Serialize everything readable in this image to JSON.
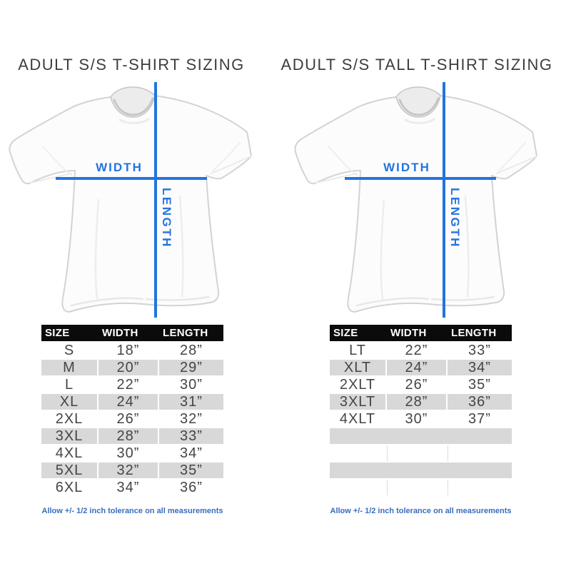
{
  "colors": {
    "accent_blue": "#2374DF",
    "footnote_blue": "#3A6DBF",
    "table_header_bg": "#0B0B0B",
    "table_header_text": "#FFFFFF",
    "row_gray": "#D8D8D8",
    "row_white": "#FFFFFF",
    "data_text": "#454545",
    "title_text": "#3D3D3D",
    "shirt_outline": "#D3D3D3"
  },
  "panels": [
    {
      "title": "ADULT S/S T-SHIRT SIZING",
      "diagram": {
        "width_label": "WIDTH",
        "length_label": "LENGTH"
      },
      "table": {
        "headers": [
          "SIZE",
          "WIDTH",
          "LENGTH"
        ],
        "rows": [
          [
            "S",
            "18”",
            "28”"
          ],
          [
            "M",
            "20”",
            "29”"
          ],
          [
            "L",
            "22”",
            "30”"
          ],
          [
            "XL",
            "24”",
            "31”"
          ],
          [
            "2XL",
            "26”",
            "32”"
          ],
          [
            "3XL",
            "28”",
            "33”"
          ],
          [
            "4XL",
            "30”",
            "34”"
          ],
          [
            "5XL",
            "32”",
            "35”"
          ],
          [
            "6XL",
            "34”",
            "36”"
          ]
        ],
        "footnote": "Allow +/- 1/2 inch tolerance on all measurements"
      }
    },
    {
      "title": "ADULT S/S TALL T-SHIRT SIZING",
      "diagram": {
        "width_label": "WIDTH",
        "length_label": "LENGTH"
      },
      "table": {
        "headers": [
          "SIZE",
          "WIDTH",
          "LENGTH"
        ],
        "rows": [
          [
            "LT",
            "22”",
            "33”"
          ],
          [
            "XLT",
            "24”",
            "34”"
          ],
          [
            "2XLT",
            "26”",
            "35”"
          ],
          [
            "3XLT",
            "28”",
            "36”"
          ],
          [
            "4XLT",
            "30”",
            "37”"
          ],
          [
            "",
            "",
            ""
          ],
          [
            "",
            "",
            ""
          ],
          [
            "",
            "",
            ""
          ],
          [
            "",
            "",
            ""
          ]
        ],
        "footnote": "Allow +/- 1/2 inch tolerance on all measurements"
      }
    }
  ],
  "chart_data": [
    {
      "type": "table",
      "title": "ADULT S/S T-SHIRT SIZING",
      "columns": [
        "SIZE",
        "WIDTH",
        "LENGTH"
      ],
      "rows": [
        [
          "S",
          "18”",
          "28”"
        ],
        [
          "M",
          "20”",
          "29”"
        ],
        [
          "L",
          "22”",
          "30”"
        ],
        [
          "XL",
          "24”",
          "31”"
        ],
        [
          "2XL",
          "26”",
          "32”"
        ],
        [
          "3XL",
          "28”",
          "33”"
        ],
        [
          "4XL",
          "30”",
          "34”"
        ],
        [
          "5XL",
          "32”",
          "35”"
        ],
        [
          "6XL",
          "34”",
          "36”"
        ]
      ],
      "footnote": "Allow +/- 1/2 inch tolerance on all measurements"
    },
    {
      "type": "table",
      "title": "ADULT S/S TALL T-SHIRT SIZING",
      "columns": [
        "SIZE",
        "WIDTH",
        "LENGTH"
      ],
      "rows": [
        [
          "LT",
          "22”",
          "33”"
        ],
        [
          "XLT",
          "24”",
          "34”"
        ],
        [
          "2XLT",
          "26”",
          "35”"
        ],
        [
          "3XLT",
          "28”",
          "36”"
        ],
        [
          "4XLT",
          "30”",
          "37”"
        ]
      ],
      "footnote": "Allow +/- 1/2 inch tolerance on all measurements"
    }
  ]
}
